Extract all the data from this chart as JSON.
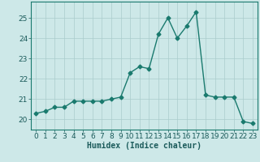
{
  "x": [
    0,
    1,
    2,
    3,
    4,
    5,
    6,
    7,
    8,
    9,
    10,
    11,
    12,
    13,
    14,
    15,
    16,
    17,
    18,
    19,
    20,
    21,
    22,
    23
  ],
  "y": [
    20.3,
    20.4,
    20.6,
    20.6,
    20.9,
    20.9,
    20.9,
    20.9,
    21.0,
    21.1,
    22.3,
    22.6,
    22.5,
    24.2,
    25.0,
    24.0,
    24.6,
    25.3,
    21.2,
    21.1,
    21.1,
    21.1,
    19.9,
    19.8
  ],
  "line_color": "#1a7a6e",
  "marker": "D",
  "marker_size": 2.5,
  "bg_color": "#cde8e8",
  "grid_color": "#aacccc",
  "xlabel": "Humidex (Indice chaleur)",
  "xlim": [
    -0.5,
    23.5
  ],
  "ylim": [
    19.5,
    25.8
  ],
  "yticks": [
    20,
    21,
    22,
    23,
    24,
    25
  ],
  "xticks": [
    0,
    1,
    2,
    3,
    4,
    5,
    6,
    7,
    8,
    9,
    10,
    11,
    12,
    13,
    14,
    15,
    16,
    17,
    18,
    19,
    20,
    21,
    22,
    23
  ],
  "xlabel_fontsize": 7,
  "tick_fontsize": 6.5,
  "line_width": 1.0
}
